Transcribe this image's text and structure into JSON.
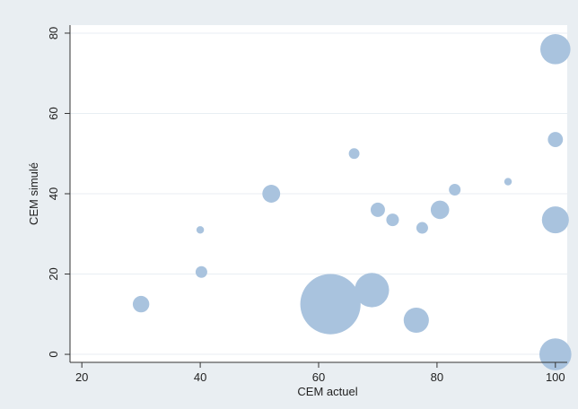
{
  "chart_data": {
    "type": "scatter",
    "title": "",
    "xlabel": "CEM actuel",
    "ylabel": "CEM simulé",
    "xlim": [
      18,
      102
    ],
    "ylim": [
      -2,
      82
    ],
    "xticks": [
      20,
      40,
      60,
      80,
      100
    ],
    "yticks": [
      0,
      20,
      40,
      60,
      80
    ],
    "grid": "horizontal",
    "legend": "none",
    "colors": {
      "background": "#e9eef2",
      "plot_area": "#ffffff",
      "bubble": "#a9c3de",
      "gridline": "#e8eef3",
      "axis": "#333333"
    },
    "points": [
      {
        "x": 30,
        "y": 12.5,
        "size": 1.2
      },
      {
        "x": 40,
        "y": 31,
        "size": 0.25
      },
      {
        "x": 40.2,
        "y": 20.5,
        "size": 0.6
      },
      {
        "x": 52,
        "y": 40,
        "size": 1.4
      },
      {
        "x": 62,
        "y": 12.5,
        "size": 16
      },
      {
        "x": 66,
        "y": 50,
        "size": 0.5
      },
      {
        "x": 69,
        "y": 16,
        "size": 5.2
      },
      {
        "x": 70,
        "y": 36,
        "size": 0.9
      },
      {
        "x": 72.5,
        "y": 33.5,
        "size": 0.7
      },
      {
        "x": 76.5,
        "y": 8.5,
        "size": 2.8
      },
      {
        "x": 77.5,
        "y": 31.5,
        "size": 0.6
      },
      {
        "x": 80.5,
        "y": 36,
        "size": 1.5
      },
      {
        "x": 83,
        "y": 41,
        "size": 0.6
      },
      {
        "x": 92,
        "y": 43,
        "size": 0.25
      },
      {
        "x": 100,
        "y": 76,
        "size": 4
      },
      {
        "x": 100,
        "y": 53.5,
        "size": 1.0
      },
      {
        "x": 100,
        "y": 33.5,
        "size": 3.2
      },
      {
        "x": 100,
        "y": 0,
        "size": 4.5
      }
    ]
  }
}
